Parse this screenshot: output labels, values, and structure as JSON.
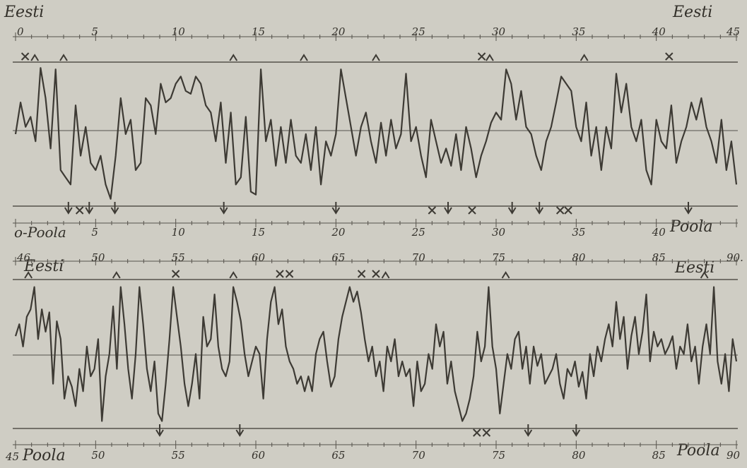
{
  "colors": {
    "paper": "#cfcdc4",
    "ink": "#3d3a34",
    "guide": "#55524b"
  },
  "chart_data": [
    {
      "type": "line",
      "top_label": "Eesti",
      "top_label_right": "Eesti",
      "bottom_label": "Poola",
      "bottom_label_left": "o-Poola",
      "x_range": [
        0,
        45
      ],
      "tick_labels": [
        "0",
        "5",
        "10",
        "15",
        "20",
        "25",
        "30",
        "35",
        "40",
        "45"
      ],
      "bottom_tick_labels": [
        "5",
        "10",
        "15",
        "20",
        "25",
        "30",
        "35",
        "40"
      ],
      "values": [
        0.5,
        0.72,
        0.55,
        0.62,
        0.45,
        0.96,
        0.75,
        0.4,
        0.95,
        0.25,
        0.2,
        0.15,
        0.7,
        0.35,
        0.55,
        0.3,
        0.25,
        0.35,
        0.15,
        0.05,
        0.35,
        0.75,
        0.5,
        0.6,
        0.25,
        0.3,
        0.75,
        0.7,
        0.5,
        0.85,
        0.72,
        0.75,
        0.85,
        0.9,
        0.8,
        0.78,
        0.9,
        0.85,
        0.7,
        0.65,
        0.45,
        0.72,
        0.3,
        0.65,
        0.15,
        0.2,
        0.62,
        0.1,
        0.08,
        0.95,
        0.45,
        0.6,
        0.28,
        0.55,
        0.3,
        0.6,
        0.35,
        0.3,
        0.5,
        0.25,
        0.55,
        0.15,
        0.45,
        0.35,
        0.5,
        0.95,
        0.75,
        0.55,
        0.35,
        0.55,
        0.65,
        0.45,
        0.3,
        0.58,
        0.35,
        0.6,
        0.4,
        0.5,
        0.92,
        0.45,
        0.55,
        0.35,
        0.2,
        0.6,
        0.45,
        0.3,
        0.4,
        0.28,
        0.5,
        0.25,
        0.55,
        0.4,
        0.2,
        0.35,
        0.45,
        0.58,
        0.65,
        0.6,
        0.95,
        0.85,
        0.6,
        0.8,
        0.55,
        0.5,
        0.35,
        0.25,
        0.45,
        0.55,
        0.72,
        0.9,
        0.85,
        0.8,
        0.55,
        0.45,
        0.72,
        0.35,
        0.55,
        0.25,
        0.55,
        0.4,
        0.92,
        0.65,
        0.85,
        0.55,
        0.45,
        0.6,
        0.25,
        0.15,
        0.6,
        0.45,
        0.4,
        0.7,
        0.3,
        0.45,
        0.55,
        0.72,
        0.6,
        0.75,
        0.55,
        0.45,
        0.3,
        0.6,
        0.25,
        0.45,
        0.15
      ],
      "markers": [
        {
          "symbol": "x",
          "x": 0.6,
          "edge": "top"
        },
        {
          "symbol": "up-arrow",
          "x": 1.2,
          "edge": "top"
        },
        {
          "symbol": "down-arrow",
          "x": 3.3,
          "edge": "bottom"
        },
        {
          "symbol": "x",
          "x": 4.0,
          "edge": "bottom"
        },
        {
          "symbol": "down-arrow",
          "x": 4.6,
          "edge": "bottom"
        },
        {
          "symbol": "up-arrow",
          "x": 3.0,
          "edge": "top"
        },
        {
          "symbol": "down-arrow",
          "x": 6.2,
          "edge": "bottom"
        },
        {
          "symbol": "down-arrow",
          "x": 13.0,
          "edge": "bottom"
        },
        {
          "symbol": "up-arrow",
          "x": 13.6,
          "edge": "top"
        },
        {
          "symbol": "up-arrow",
          "x": 18.0,
          "edge": "top"
        },
        {
          "symbol": "down-arrow",
          "x": 20.0,
          "edge": "bottom"
        },
        {
          "symbol": "up-arrow",
          "x": 22.5,
          "edge": "top"
        },
        {
          "symbol": "x",
          "x": 26.0,
          "edge": "bottom"
        },
        {
          "symbol": "down-arrow",
          "x": 27.0,
          "edge": "bottom"
        },
        {
          "symbol": "x",
          "x": 28.5,
          "edge": "bottom"
        },
        {
          "symbol": "x",
          "x": 29.1,
          "edge": "top"
        },
        {
          "symbol": "up-arrow",
          "x": 29.6,
          "edge": "top"
        },
        {
          "symbol": "down-arrow",
          "x": 31.0,
          "edge": "bottom"
        },
        {
          "symbol": "down-arrow",
          "x": 32.7,
          "edge": "bottom"
        },
        {
          "symbol": "x",
          "x": 34.0,
          "edge": "bottom"
        },
        {
          "symbol": "x",
          "x": 34.5,
          "edge": "bottom"
        },
        {
          "symbol": "up-arrow",
          "x": 35.5,
          "edge": "top"
        },
        {
          "symbol": "x",
          "x": 40.8,
          "edge": "top"
        },
        {
          "symbol": "down-arrow",
          "x": 42.0,
          "edge": "bottom"
        }
      ]
    },
    {
      "type": "line",
      "top_label": "Eesti",
      "top_label_right": "Eesti",
      "bottom_label": "Poola",
      "bottom_label_left": "Poola",
      "x_range": [
        45,
        90
      ],
      "tick_labels": [
        "46",
        "50",
        "55",
        "60",
        "65",
        "70",
        "75",
        "80",
        "85",
        "90"
      ],
      "top_tick_labels": [
        "46",
        "50",
        "55",
        "60",
        "65",
        "70",
        "75",
        "80",
        "85",
        "90."
      ],
      "bottom_tick_labels": [
        "45",
        "50",
        "55",
        "60",
        "65",
        "70",
        "75",
        "80",
        "85",
        "90"
      ],
      "values": [
        0.62,
        0.7,
        0.55,
        0.75,
        0.8,
        0.95,
        0.6,
        0.8,
        0.65,
        0.78,
        0.3,
        0.72,
        0.6,
        0.2,
        0.35,
        0.28,
        0.15,
        0.4,
        0.25,
        0.55,
        0.35,
        0.4,
        0.6,
        0.05,
        0.35,
        0.5,
        0.82,
        0.4,
        0.95,
        0.7,
        0.4,
        0.2,
        0.5,
        0.95,
        0.7,
        0.4,
        0.25,
        0.45,
        0.1,
        0.05,
        0.3,
        0.6,
        0.95,
        0.75,
        0.55,
        0.3,
        0.15,
        0.3,
        0.5,
        0.2,
        0.75,
        0.55,
        0.6,
        0.9,
        0.55,
        0.4,
        0.35,
        0.45,
        0.95,
        0.85,
        0.72,
        0.5,
        0.35,
        0.45,
        0.55,
        0.5,
        0.2,
        0.6,
        0.85,
        0.95,
        0.7,
        0.8,
        0.55,
        0.45,
        0.4,
        0.3,
        0.35,
        0.25,
        0.35,
        0.25,
        0.5,
        0.6,
        0.65,
        0.45,
        0.28,
        0.35,
        0.6,
        0.75,
        0.85,
        0.95,
        0.85,
        0.92,
        0.78,
        0.6,
        0.45,
        0.55,
        0.35,
        0.45,
        0.25,
        0.55,
        0.45,
        0.6,
        0.35,
        0.45,
        0.35,
        0.4,
        0.15,
        0.45,
        0.25,
        0.3,
        0.5,
        0.4,
        0.7,
        0.55,
        0.65,
        0.3,
        0.45,
        0.25,
        0.15,
        0.05,
        0.1,
        0.2,
        0.35,
        0.65,
        0.45,
        0.55,
        0.95,
        0.55,
        0.4,
        0.1,
        0.3,
        0.5,
        0.4,
        0.6,
        0.65,
        0.4,
        0.55,
        0.3,
        0.55,
        0.42,
        0.5,
        0.3,
        0.35,
        0.4,
        0.5,
        0.3,
        0.2,
        0.4,
        0.35,
        0.45,
        0.28,
        0.38,
        0.2,
        0.5,
        0.35,
        0.55,
        0.45,
        0.6,
        0.7,
        0.55,
        0.85,
        0.6,
        0.75,
        0.4,
        0.62,
        0.75,
        0.5,
        0.65,
        0.9,
        0.45,
        0.65,
        0.55,
        0.6,
        0.5,
        0.55,
        0.62,
        0.4,
        0.55,
        0.5,
        0.7,
        0.45,
        0.55,
        0.3,
        0.55,
        0.7,
        0.5,
        0.95,
        0.45,
        0.3,
        0.5,
        0.25,
        0.6,
        0.45
      ],
      "markers": [
        {
          "symbol": "up-arrow",
          "x": 45.8,
          "edge": "top"
        },
        {
          "symbol": "x",
          "x": 55.0,
          "edge": "top"
        },
        {
          "symbol": "down-arrow",
          "x": 54.0,
          "edge": "bottom"
        },
        {
          "symbol": "up-arrow",
          "x": 51.3,
          "edge": "top"
        },
        {
          "symbol": "down-arrow",
          "x": 59.0,
          "edge": "bottom"
        },
        {
          "symbol": "up-arrow",
          "x": 58.6,
          "edge": "top"
        },
        {
          "symbol": "x",
          "x": 61.5,
          "edge": "top"
        },
        {
          "symbol": "x",
          "x": 62.1,
          "edge": "top"
        },
        {
          "symbol": "x",
          "x": 66.6,
          "edge": "top"
        },
        {
          "symbol": "x",
          "x": 67.5,
          "edge": "top"
        },
        {
          "symbol": "up-arrow",
          "x": 68.1,
          "edge": "top"
        },
        {
          "symbol": "x",
          "x": 73.8,
          "edge": "bottom"
        },
        {
          "symbol": "x",
          "x": 74.4,
          "edge": "bottom"
        },
        {
          "symbol": "up-arrow",
          "x": 75.6,
          "edge": "top"
        },
        {
          "symbol": "down-arrow",
          "x": 77.0,
          "edge": "bottom"
        },
        {
          "symbol": "down-arrow",
          "x": 80.0,
          "edge": "bottom"
        },
        {
          "symbol": "up-arrow",
          "x": 88.0,
          "edge": "top"
        }
      ]
    }
  ]
}
